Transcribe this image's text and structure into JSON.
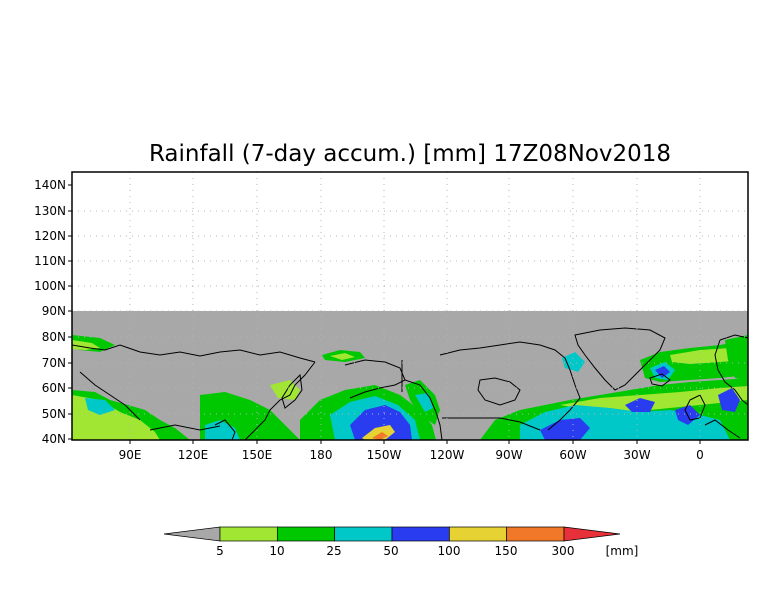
{
  "title": "Rainfall (7-day accum.) [mm] 17Z08Nov2018",
  "lat_labels": [
    "140N",
    "130N",
    "120N",
    "110N",
    "100N",
    "90N",
    "80N",
    "70N",
    "60N",
    "50N",
    "40N"
  ],
  "lon_labels": [
    "90E",
    "120E",
    "150E",
    "180",
    "150W",
    "120W",
    "90W",
    "60W",
    "30W",
    "0"
  ],
  "colorbar": {
    "below_color": "#a8a8a8",
    "above_color": "#e8303a",
    "segments": [
      {
        "color": "#a0e632"
      },
      {
        "color": "#00c800"
      },
      {
        "color": "#00c8c8"
      },
      {
        "color": "#2a3cf0"
      },
      {
        "color": "#e6d232"
      },
      {
        "color": "#f07828"
      }
    ],
    "tick_labels": [
      "5",
      "10",
      "25",
      "50",
      "100",
      "150",
      "300"
    ],
    "unit": "[mm]"
  },
  "colors": {
    "no_data": "#a8a8a8",
    "coast": "#000000",
    "grid": "#b4b4b4"
  }
}
